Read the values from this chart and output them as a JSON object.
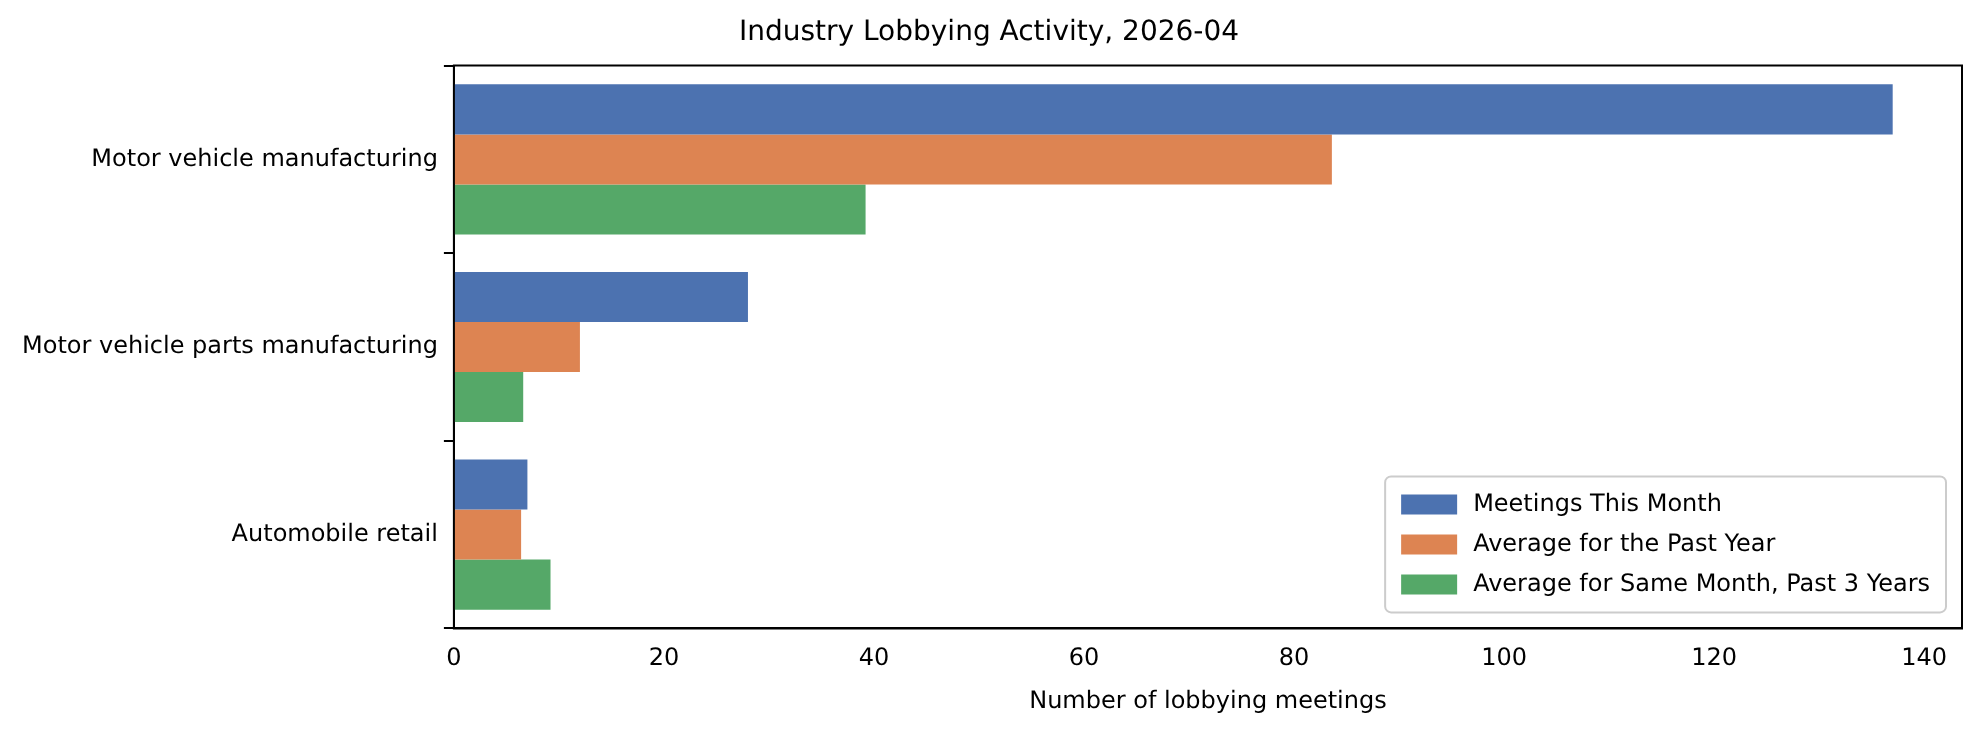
{
  "chart_data": {
    "type": "bar",
    "orientation": "horizontal",
    "title": "Industry Lobbying Activity, 2026-04",
    "xlabel": "Number of lobbying meetings",
    "categories": [
      "Motor vehicle manufacturing",
      "Motor vehicle parts manufacturing",
      "Automobile retail"
    ],
    "series": [
      {
        "name": "Meetings This Month",
        "color": "#4c72b0",
        "values": [
          137,
          28,
          7
        ]
      },
      {
        "name": "Average for the Past Year",
        "color": "#dd8452",
        "values": [
          83.6,
          12,
          6.4
        ]
      },
      {
        "name": "Average for Same Month, Past 3 Years",
        "color": "#55a868",
        "values": [
          39.2,
          6.6,
          9.2
        ]
      }
    ],
    "xlim": [
      0,
      143.6
    ],
    "xticks": [
      0,
      20,
      40,
      60,
      80,
      100,
      120,
      140
    ],
    "grid": false,
    "legend": "bottom right"
  }
}
